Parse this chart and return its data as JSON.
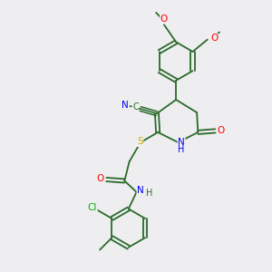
{
  "background_color": "#eeeef0",
  "bond_color": "#2a6a2a",
  "atom_colors": {
    "N": "#0000ff",
    "O": "#ff0000",
    "S": "#ccaa00",
    "Cl": "#00aa00",
    "C": "#2a6a2a",
    "default": "#2a6a2a"
  },
  "figsize": [
    3.0,
    3.0
  ],
  "dpi": 100
}
